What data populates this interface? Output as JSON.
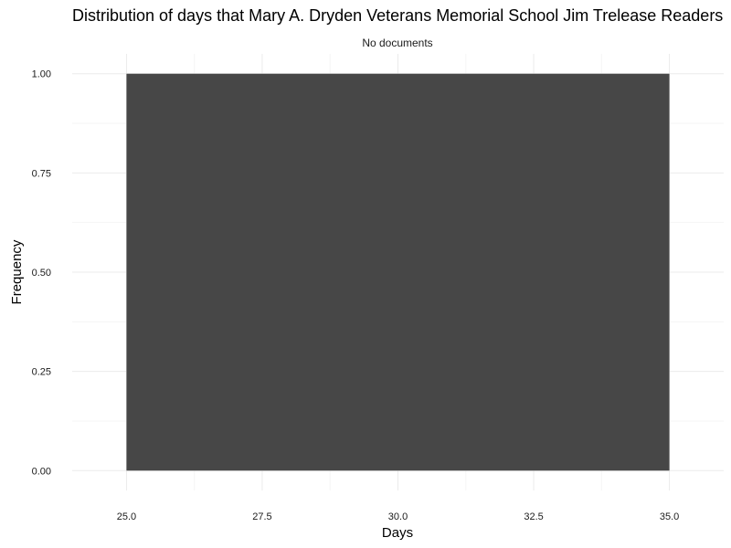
{
  "chart_data": {
    "type": "bar",
    "title": "Distribution of days that Mary A. Dryden Veterans Memorial School Jim Trelease Readers",
    "subtitle": "No documents",
    "xlabel": "Days",
    "ylabel": "Frequency",
    "bins": [
      {
        "x_start": 25.0,
        "x_end": 35.0,
        "value": 1.0
      }
    ],
    "xlim": [
      24.0,
      36.0
    ],
    "ylim": [
      -0.05,
      1.05
    ],
    "x_ticks": [
      "25.0",
      "27.5",
      "30.0",
      "32.5",
      "35.0"
    ],
    "x_tick_values": [
      25.0,
      27.5,
      30.0,
      32.5,
      35.0
    ],
    "y_ticks": [
      "0.00",
      "0.25",
      "0.50",
      "0.75",
      "1.00"
    ],
    "y_tick_values": [
      0.0,
      0.25,
      0.5,
      0.75,
      1.0
    ],
    "grid": true,
    "bar_color": "#474747"
  }
}
